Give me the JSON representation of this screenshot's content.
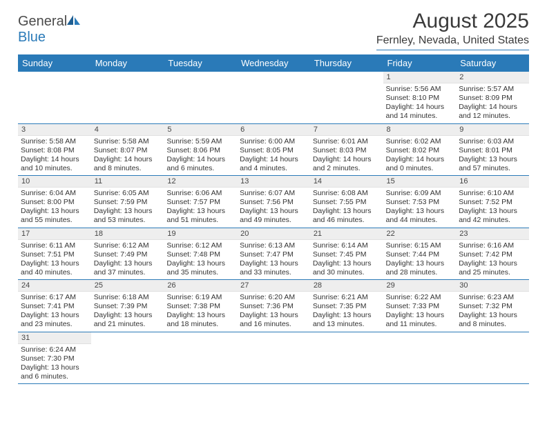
{
  "brand": {
    "name_a": "General",
    "name_b": "Blue"
  },
  "title": "August 2025",
  "location": "Fernley, Nevada, United States",
  "colors": {
    "header_bg": "#2a7ab8",
    "header_text": "#ffffff",
    "daynum_bg": "#eeeeee",
    "border": "#2a7ab8",
    "text": "#333333"
  },
  "daysOfWeek": [
    "Sunday",
    "Monday",
    "Tuesday",
    "Wednesday",
    "Thursday",
    "Friday",
    "Saturday"
  ],
  "weeks": [
    [
      null,
      null,
      null,
      null,
      null,
      {
        "n": "1",
        "sr": "Sunrise: 5:56 AM",
        "ss": "Sunset: 8:10 PM",
        "d1": "Daylight: 14 hours",
        "d2": "and 14 minutes."
      },
      {
        "n": "2",
        "sr": "Sunrise: 5:57 AM",
        "ss": "Sunset: 8:09 PM",
        "d1": "Daylight: 14 hours",
        "d2": "and 12 minutes."
      }
    ],
    [
      {
        "n": "3",
        "sr": "Sunrise: 5:58 AM",
        "ss": "Sunset: 8:08 PM",
        "d1": "Daylight: 14 hours",
        "d2": "and 10 minutes."
      },
      {
        "n": "4",
        "sr": "Sunrise: 5:58 AM",
        "ss": "Sunset: 8:07 PM",
        "d1": "Daylight: 14 hours",
        "d2": "and 8 minutes."
      },
      {
        "n": "5",
        "sr": "Sunrise: 5:59 AM",
        "ss": "Sunset: 8:06 PM",
        "d1": "Daylight: 14 hours",
        "d2": "and 6 minutes."
      },
      {
        "n": "6",
        "sr": "Sunrise: 6:00 AM",
        "ss": "Sunset: 8:05 PM",
        "d1": "Daylight: 14 hours",
        "d2": "and 4 minutes."
      },
      {
        "n": "7",
        "sr": "Sunrise: 6:01 AM",
        "ss": "Sunset: 8:03 PM",
        "d1": "Daylight: 14 hours",
        "d2": "and 2 minutes."
      },
      {
        "n": "8",
        "sr": "Sunrise: 6:02 AM",
        "ss": "Sunset: 8:02 PM",
        "d1": "Daylight: 14 hours",
        "d2": "and 0 minutes."
      },
      {
        "n": "9",
        "sr": "Sunrise: 6:03 AM",
        "ss": "Sunset: 8:01 PM",
        "d1": "Daylight: 13 hours",
        "d2": "and 57 minutes."
      }
    ],
    [
      {
        "n": "10",
        "sr": "Sunrise: 6:04 AM",
        "ss": "Sunset: 8:00 PM",
        "d1": "Daylight: 13 hours",
        "d2": "and 55 minutes."
      },
      {
        "n": "11",
        "sr": "Sunrise: 6:05 AM",
        "ss": "Sunset: 7:59 PM",
        "d1": "Daylight: 13 hours",
        "d2": "and 53 minutes."
      },
      {
        "n": "12",
        "sr": "Sunrise: 6:06 AM",
        "ss": "Sunset: 7:57 PM",
        "d1": "Daylight: 13 hours",
        "d2": "and 51 minutes."
      },
      {
        "n": "13",
        "sr": "Sunrise: 6:07 AM",
        "ss": "Sunset: 7:56 PM",
        "d1": "Daylight: 13 hours",
        "d2": "and 49 minutes."
      },
      {
        "n": "14",
        "sr": "Sunrise: 6:08 AM",
        "ss": "Sunset: 7:55 PM",
        "d1": "Daylight: 13 hours",
        "d2": "and 46 minutes."
      },
      {
        "n": "15",
        "sr": "Sunrise: 6:09 AM",
        "ss": "Sunset: 7:53 PM",
        "d1": "Daylight: 13 hours",
        "d2": "and 44 minutes."
      },
      {
        "n": "16",
        "sr": "Sunrise: 6:10 AM",
        "ss": "Sunset: 7:52 PM",
        "d1": "Daylight: 13 hours",
        "d2": "and 42 minutes."
      }
    ],
    [
      {
        "n": "17",
        "sr": "Sunrise: 6:11 AM",
        "ss": "Sunset: 7:51 PM",
        "d1": "Daylight: 13 hours",
        "d2": "and 40 minutes."
      },
      {
        "n": "18",
        "sr": "Sunrise: 6:12 AM",
        "ss": "Sunset: 7:49 PM",
        "d1": "Daylight: 13 hours",
        "d2": "and 37 minutes."
      },
      {
        "n": "19",
        "sr": "Sunrise: 6:12 AM",
        "ss": "Sunset: 7:48 PM",
        "d1": "Daylight: 13 hours",
        "d2": "and 35 minutes."
      },
      {
        "n": "20",
        "sr": "Sunrise: 6:13 AM",
        "ss": "Sunset: 7:47 PM",
        "d1": "Daylight: 13 hours",
        "d2": "and 33 minutes."
      },
      {
        "n": "21",
        "sr": "Sunrise: 6:14 AM",
        "ss": "Sunset: 7:45 PM",
        "d1": "Daylight: 13 hours",
        "d2": "and 30 minutes."
      },
      {
        "n": "22",
        "sr": "Sunrise: 6:15 AM",
        "ss": "Sunset: 7:44 PM",
        "d1": "Daylight: 13 hours",
        "d2": "and 28 minutes."
      },
      {
        "n": "23",
        "sr": "Sunrise: 6:16 AM",
        "ss": "Sunset: 7:42 PM",
        "d1": "Daylight: 13 hours",
        "d2": "and 25 minutes."
      }
    ],
    [
      {
        "n": "24",
        "sr": "Sunrise: 6:17 AM",
        "ss": "Sunset: 7:41 PM",
        "d1": "Daylight: 13 hours",
        "d2": "and 23 minutes."
      },
      {
        "n": "25",
        "sr": "Sunrise: 6:18 AM",
        "ss": "Sunset: 7:39 PM",
        "d1": "Daylight: 13 hours",
        "d2": "and 21 minutes."
      },
      {
        "n": "26",
        "sr": "Sunrise: 6:19 AM",
        "ss": "Sunset: 7:38 PM",
        "d1": "Daylight: 13 hours",
        "d2": "and 18 minutes."
      },
      {
        "n": "27",
        "sr": "Sunrise: 6:20 AM",
        "ss": "Sunset: 7:36 PM",
        "d1": "Daylight: 13 hours",
        "d2": "and 16 minutes."
      },
      {
        "n": "28",
        "sr": "Sunrise: 6:21 AM",
        "ss": "Sunset: 7:35 PM",
        "d1": "Daylight: 13 hours",
        "d2": "and 13 minutes."
      },
      {
        "n": "29",
        "sr": "Sunrise: 6:22 AM",
        "ss": "Sunset: 7:33 PM",
        "d1": "Daylight: 13 hours",
        "d2": "and 11 minutes."
      },
      {
        "n": "30",
        "sr": "Sunrise: 6:23 AM",
        "ss": "Sunset: 7:32 PM",
        "d1": "Daylight: 13 hours",
        "d2": "and 8 minutes."
      }
    ],
    [
      {
        "n": "31",
        "sr": "Sunrise: 6:24 AM",
        "ss": "Sunset: 7:30 PM",
        "d1": "Daylight: 13 hours",
        "d2": "and 6 minutes."
      },
      null,
      null,
      null,
      null,
      null,
      null
    ]
  ]
}
